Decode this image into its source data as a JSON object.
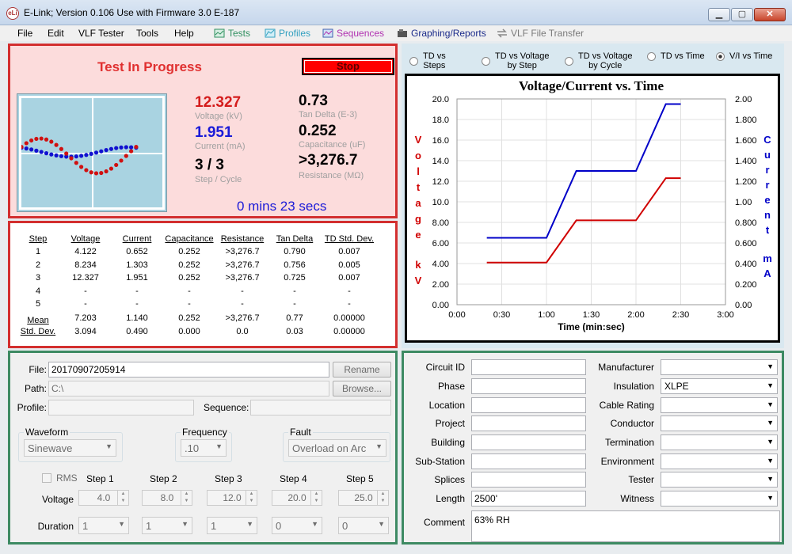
{
  "window": {
    "title": "E-Link; Version 0.106   Use with Firmware 3.0 E-187",
    "icon_text": "eLi"
  },
  "menu": {
    "items": [
      "File",
      "Edit",
      "VLF Tester",
      "Tools",
      "Help"
    ],
    "tools": [
      {
        "label": "Tests",
        "color": "#2f8f5f",
        "icon": "tests-icon"
      },
      {
        "label": "Profiles",
        "color": "#33a0c0",
        "icon": "profiles-icon"
      },
      {
        "label": "Sequences",
        "color": "#b030b0",
        "icon": "sequences-icon"
      },
      {
        "label": "Graphing/Reports",
        "color": "#1a2a8a",
        "icon": "graphing-icon"
      },
      {
        "label": "VLF File Transfer",
        "color": "#7a7a7a",
        "icon": "transfer-icon"
      }
    ]
  },
  "status": {
    "title": "Test In Progress",
    "stop_label": "Stop",
    "voltage": {
      "value": "12.327",
      "label": "Voltage (kV)",
      "color": "#d41c1c"
    },
    "current": {
      "value": "1.951",
      "label": "Current (mA)",
      "color": "#1a1ad8"
    },
    "step": {
      "value": "3 / 3",
      "label": "Step / Cycle"
    },
    "tan_delta": {
      "value": "0.73",
      "label": "Tan Delta (E-3)"
    },
    "capacitance": {
      "value": "0.252",
      "label": "Capacitance (uF)"
    },
    "resistance": {
      "value": ">3,276.7",
      "label": "Resistance (MΩ)"
    },
    "elapsed": "0 mins 23 secs"
  },
  "steps_table": {
    "headers": [
      "Step",
      "Voltage",
      "Current",
      "Capacitance",
      "Resistance",
      "Tan Delta",
      "TD Std. Dev."
    ],
    "rows": [
      [
        "1",
        "4.122",
        "0.652",
        "0.252",
        ">3,276.7",
        "0.790",
        "0.007"
      ],
      [
        "2",
        "8.234",
        "1.303",
        "0.252",
        ">3,276.7",
        "0.756",
        "0.005"
      ],
      [
        "3",
        "12.327",
        "1.951",
        "0.252",
        ">3,276.7",
        "0.725",
        "0.007"
      ],
      [
        "4",
        "-",
        "-",
        "-",
        "-",
        "-",
        "-"
      ],
      [
        "5",
        "-",
        "-",
        "-",
        "-",
        "-",
        "-"
      ]
    ],
    "mean": [
      "Mean",
      "7.203",
      "1.140",
      "0.252",
      ">3,276.7",
      "0.77",
      "0.00000"
    ],
    "std": [
      "Std. Dev.",
      "3.094",
      "0.490",
      "0.000",
      "0.0",
      "0.03",
      "0.00000"
    ]
  },
  "graph_options": [
    {
      "label": "TD vs\nSteps",
      "selected": false
    },
    {
      "label": "TD vs Voltage\nby Step",
      "selected": false
    },
    {
      "label": "TD vs Voltage\nby Cycle",
      "selected": false
    },
    {
      "label": "TD vs Time",
      "selected": false
    },
    {
      "label": "V/I vs Time",
      "selected": true
    }
  ],
  "chart_data": {
    "type": "line",
    "title": "Voltage/Current vs. Time",
    "xlabel": "Time (min:sec)",
    "ylabel": "Voltage kV",
    "y2label": "Current mA",
    "x_ticks": [
      "0:00",
      "0:30",
      "1:00",
      "1:30",
      "2:00",
      "2:30",
      "3:00"
    ],
    "xlim": [
      0,
      180
    ],
    "ylim": [
      0,
      20
    ],
    "y2lim": [
      0,
      2
    ],
    "y_ticks": [
      "0.00",
      "2.00",
      "4.00",
      "6.00",
      "8.00",
      "10.0",
      "12.0",
      "14.0",
      "16.0",
      "18.0",
      "20.0"
    ],
    "y2_ticks": [
      "0.00",
      "0.200",
      "0.400",
      "0.600",
      "0.800",
      "1.00",
      "1.200",
      "1.400",
      "1.600",
      "1.800",
      "2.00"
    ],
    "grid": true,
    "series": [
      {
        "axis": "left",
        "color": "#d00000",
        "x": [
          20,
          60,
          80,
          120,
          140,
          150
        ],
        "y": [
          4.1,
          4.1,
          8.2,
          8.2,
          12.3,
          12.3
        ]
      },
      {
        "axis": "right",
        "color": "#0000c8",
        "x": [
          20,
          60,
          80,
          120,
          140,
          150
        ],
        "y": [
          0.65,
          0.65,
          1.3,
          1.3,
          1.95,
          1.95
        ]
      }
    ]
  },
  "file_form": {
    "file_label": "File:",
    "file_value": "20170907205914",
    "rename": "Rename",
    "path_label": "Path:",
    "path_value": "C:\\",
    "browse": "Browse...",
    "profile_label": "Profile:",
    "profile_value": "",
    "sequence_label": "Sequence:",
    "sequence_value": "",
    "waveform_label": "Waveform",
    "waveform_value": "Sinewave",
    "frequency_label": "Frequency",
    "frequency_value": ".10",
    "fault_label": "Fault",
    "fault_value": "Overload on Arc",
    "rms_label": "RMS",
    "step_headers": [
      "Step 1",
      "Step 2",
      "Step 3",
      "Step 4",
      "Step 5"
    ],
    "voltage_label": "Voltage",
    "voltages": [
      "4.0",
      "8.0",
      "12.0",
      "20.0",
      "25.0"
    ],
    "duration_label": "Duration",
    "durations": [
      "1",
      "1",
      "1",
      "0",
      "0"
    ]
  },
  "circuit": {
    "left": [
      {
        "label": "Circuit ID",
        "value": ""
      },
      {
        "label": "Phase",
        "value": ""
      },
      {
        "label": "Location",
        "value": ""
      },
      {
        "label": "Project",
        "value": ""
      },
      {
        "label": "Building",
        "value": ""
      },
      {
        "label": "Sub-Station",
        "value": ""
      },
      {
        "label": "Splices",
        "value": ""
      },
      {
        "label": "Length",
        "value": "2500'"
      }
    ],
    "right": [
      {
        "label": "Manufacturer",
        "value": ""
      },
      {
        "label": "Insulation",
        "value": "XLPE"
      },
      {
        "label": "Cable Rating",
        "value": ""
      },
      {
        "label": "Conductor",
        "value": ""
      },
      {
        "label": "Termination",
        "value": ""
      },
      {
        "label": "Environment",
        "value": ""
      },
      {
        "label": "Tester",
        "value": ""
      },
      {
        "label": "Witness",
        "value": ""
      }
    ],
    "comment_label": "Comment",
    "comment_value": "63% RH"
  }
}
